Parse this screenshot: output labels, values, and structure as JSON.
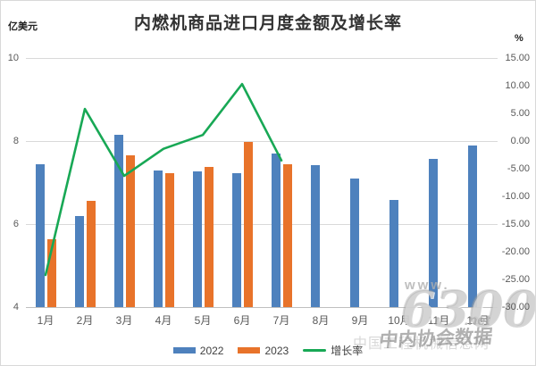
{
  "title": "内燃机商品进口月度金额及增长率",
  "left_axis_unit": "亿美元",
  "right_axis_unit": "%",
  "chart_data": {
    "type": "combo-bar-line",
    "title": "内燃机商品进口月度金额及增长率",
    "categories": [
      "1月",
      "2月",
      "3月",
      "4月",
      "5月",
      "6月",
      "7月",
      "8月",
      "9月",
      "10月",
      "11月",
      "12月"
    ],
    "series": [
      {
        "name": "2022",
        "type": "bar",
        "axis": "left",
        "color": "#4E81BD",
        "values": [
          7.45,
          6.2,
          8.15,
          7.3,
          7.27,
          7.23,
          7.7,
          7.42,
          7.1,
          6.58,
          7.56,
          7.9
        ]
      },
      {
        "name": "2023",
        "type": "bar",
        "axis": "left",
        "color": "#E8732A",
        "values": [
          5.63,
          6.56,
          7.66,
          7.22,
          7.38,
          7.98,
          7.45,
          null,
          null,
          null,
          null,
          null
        ]
      },
      {
        "name": "增长率",
        "type": "line",
        "axis": "right",
        "color": "#18A855",
        "values": [
          -24.2,
          5.8,
          -6.3,
          -1.4,
          1.1,
          10.3,
          -3.5,
          null,
          null,
          null,
          null,
          null
        ]
      }
    ],
    "left_axis": {
      "min": 4,
      "max": 10,
      "ticks": [
        10,
        8,
        6,
        4
      ],
      "label": "亿美元"
    },
    "right_axis": {
      "min": -30,
      "max": 15,
      "ticks": [
        "15.00",
        "10.00",
        "5.00",
        "0.00",
        "-5.00",
        "-10.00",
        "-15.00",
        "-20.00",
        "-25.00",
        "-30.00"
      ],
      "label": "%"
    },
    "grid": "horizontal",
    "legend_position": "bottom"
  },
  "legend": {
    "items": [
      {
        "label": "2022",
        "color": "#4E81BD",
        "type": "bar"
      },
      {
        "label": "2023",
        "color": "#E8732A",
        "type": "bar"
      },
      {
        "label": "增长率",
        "color": "#18A855",
        "type": "line"
      }
    ]
  },
  "watermark": {
    "www": "www.",
    "number": "6300",
    "net": ".net",
    "site_text": "中国工程机械信息网",
    "assoc_text": "中内协会数据"
  },
  "colors": {
    "grid": "#D9D9D9",
    "axis_line": "#BFBFBF",
    "tick_text": "#595959",
    "title_text": "#333333"
  }
}
